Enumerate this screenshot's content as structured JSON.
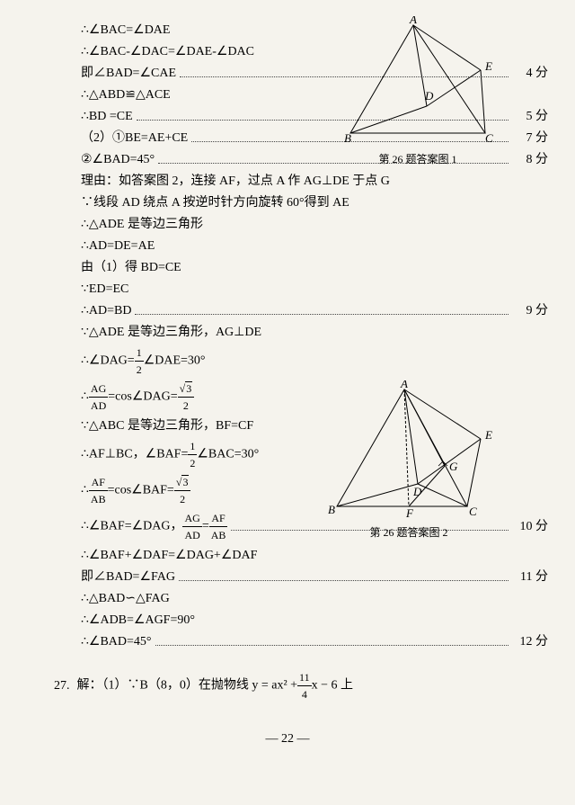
{
  "lines": [
    {
      "text": "∴∠BAC=∠DAE",
      "score": ""
    },
    {
      "text": "∴∠BAC-∠DAC=∠DAE-∠DAC",
      "score": ""
    },
    {
      "text": "即∠BAD=∠CAE",
      "score": "4 分",
      "dots": true
    },
    {
      "text": "∴△ABD≌△ACE",
      "score": ""
    },
    {
      "text": "∴BD =CE",
      "score": "5 分",
      "dots": true
    },
    {
      "text": "（2）①BE=AE+CE",
      "score": "7 分",
      "dots": true
    },
    {
      "text": "②∠BAD=45°",
      "score": "8 分",
      "dots": true
    },
    {
      "text": "理由：如答案图 2，连接 AF，过点 A 作 AG⊥DE 于点 G",
      "score": ""
    },
    {
      "text": "∵线段 AD 绕点 A 按逆时针方向旋转 60°得到 AE",
      "score": ""
    },
    {
      "text": "∴△ADE 是等边三角形",
      "score": ""
    },
    {
      "text": "∴AD=DE=AE",
      "score": ""
    },
    {
      "text": "由（1）得 BD=CE",
      "score": ""
    },
    {
      "text": "∵ED=EC",
      "score": ""
    },
    {
      "text": "∴AD=BD",
      "score": "9 分",
      "dots": true
    },
    {
      "text": "∵△ADE 是等边三角形，AG⊥DE",
      "score": ""
    }
  ],
  "frac_lines": {
    "dag": {
      "prefix": "∴∠DAG=",
      "num": "1",
      "den": "2",
      "suffix": "∠DAE=30°"
    },
    "agad": {
      "prefix": "∴",
      "num1": "AG",
      "den1": "AD",
      "mid": "=cos∠DAG=",
      "num2": "√3",
      "den2": "2"
    },
    "abc": {
      "text": "∵△ABC 是等边三角形，BF=CF"
    },
    "afbc": {
      "prefix": "∴AF⊥BC，∠BAF=",
      "num": "1",
      "den": "2",
      "suffix": "∠BAC=30°"
    },
    "afab": {
      "prefix": "∴",
      "num1": "AF",
      "den1": "AB",
      "mid": "=cos∠BAF=",
      "num2": "√3",
      "den2": "2"
    },
    "baf_dag": {
      "prefix": "∴∠BAF=∠DAG，",
      "num1": "AG",
      "den1": "AD",
      "mid": "=",
      "num2": "AF",
      "den2": "AB",
      "score": "10 分"
    },
    "baf_daf": {
      "text": "∴∠BAF+∠DAF=∠DAG+∠DAF"
    },
    "bad_fag": {
      "text": "即∠BAD=∠FAG",
      "score": "11 分"
    },
    "sim": {
      "text": "∴△BAD∽△FAG"
    },
    "adb": {
      "text": "∴∠ADB=∠AGF=90°"
    },
    "bad45": {
      "text": "∴∠BAD=45°",
      "score": "12 分"
    }
  },
  "q27": {
    "label": "27.",
    "text": "解：（1）∵B（8，0）在抛物线 y = ax² +",
    "num": "11",
    "den": "4",
    "suffix": "x − 6 上"
  },
  "fig1": {
    "caption": "第 26 题答案图 1",
    "labels": {
      "A": "A",
      "B": "B",
      "C": "C",
      "D": "D",
      "E": "E"
    }
  },
  "fig2": {
    "caption": "第 26 题答案图 2",
    "labels": {
      "A": "A",
      "B": "B",
      "C": "C",
      "D": "D",
      "E": "E",
      "F": "F",
      "G": "G"
    }
  },
  "pagenum": "— 22 —",
  "colors": {
    "bg": "#f5f3ed",
    "text": "#000000",
    "line": "#000000"
  }
}
